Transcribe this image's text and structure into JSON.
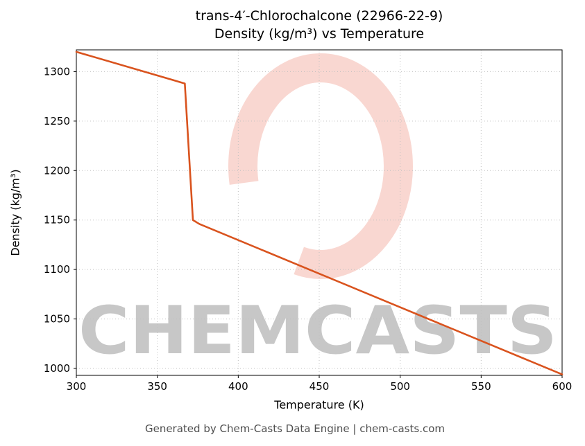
{
  "chart_data": {
    "type": "line",
    "title_line1": "trans-4′-Chlorochalcone (22966-22-9)",
    "title_line2": "Density (kg/m³) vs Temperature",
    "xlabel": "Temperature (K)",
    "ylabel": "Density (kg/m³)",
    "xlim": [
      300,
      600
    ],
    "ylim": [
      993,
      1322
    ],
    "x_ticks": [
      300,
      350,
      400,
      450,
      500,
      550,
      600
    ],
    "y_ticks": [
      1000,
      1050,
      1100,
      1150,
      1200,
      1250,
      1300
    ],
    "grid": true,
    "legend_position": "none",
    "line_color": "#d9531e",
    "series": [
      {
        "name": "Density (kg/m³)",
        "points": [
          [
            300,
            1320
          ],
          [
            367,
            1288
          ],
          [
            372,
            1150
          ],
          [
            376,
            1146
          ],
          [
            600,
            994
          ]
        ]
      }
    ]
  },
  "watermark": {
    "text": "CHEMCASTS",
    "logo": "C-swoosh",
    "color": "#e2482e"
  },
  "footer": {
    "text": "Generated by Chem-Casts Data Engine | chem-casts.com"
  }
}
